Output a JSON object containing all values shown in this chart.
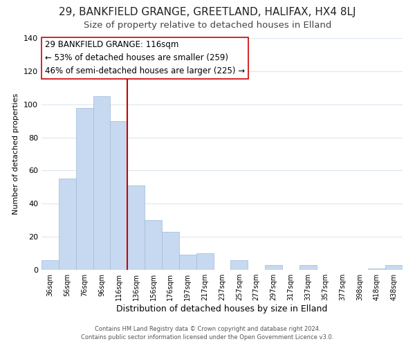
{
  "title_line1": "29, BANKFIELD GRANGE, GREETLAND, HALIFAX, HX4 8LJ",
  "title_line2": "Size of property relative to detached houses in Elland",
  "xlabel": "Distribution of detached houses by size in Elland",
  "ylabel": "Number of detached properties",
  "bar_labels": [
    "36sqm",
    "56sqm",
    "76sqm",
    "96sqm",
    "116sqm",
    "136sqm",
    "156sqm",
    "176sqm",
    "197sqm",
    "217sqm",
    "237sqm",
    "257sqm",
    "277sqm",
    "297sqm",
    "317sqm",
    "337sqm",
    "357sqm",
    "377sqm",
    "398sqm",
    "418sqm",
    "438sqm"
  ],
  "bar_heights": [
    6,
    55,
    98,
    105,
    90,
    51,
    30,
    23,
    9,
    10,
    0,
    6,
    0,
    3,
    0,
    3,
    0,
    0,
    0,
    1,
    3
  ],
  "bar_color": "#c6d9f0",
  "bar_edge_color": "#a0b8d8",
  "vline_index": 4,
  "vline_color": "#cc0000",
  "annotation_line1": "29 BANKFIELD GRANGE: 116sqm",
  "annotation_line2": "← 53% of detached houses are smaller (259)",
  "annotation_line3": "46% of semi-detached houses are larger (225) →",
  "annotation_fontsize": 8.5,
  "title_fontsize1": 11,
  "title_fontsize2": 9.5,
  "xlabel_fontsize": 9,
  "ylabel_fontsize": 8,
  "footer_line1": "Contains HM Land Registry data © Crown copyright and database right 2024.",
  "footer_line2": "Contains public sector information licensed under the Open Government Licence v3.0.",
  "ylim": [
    0,
    140
  ],
  "yticks": [
    0,
    20,
    40,
    60,
    80,
    100,
    120,
    140
  ],
  "background_color": "#ffffff",
  "grid_color": "#dce6f0"
}
